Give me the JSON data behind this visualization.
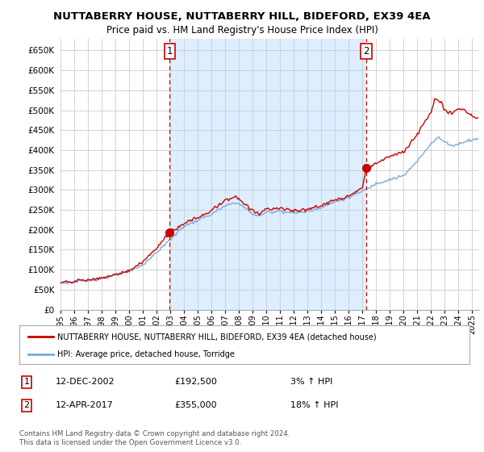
{
  "title": "NUTTABERRY HOUSE, NUTTABERRY HILL, BIDEFORD, EX39 4EA",
  "subtitle": "Price paid vs. HM Land Registry's House Price Index (HPI)",
  "ylabel_ticks": [
    "£0",
    "£50K",
    "£100K",
    "£150K",
    "£200K",
    "£250K",
    "£300K",
    "£350K",
    "£400K",
    "£450K",
    "£500K",
    "£550K",
    "£600K",
    "£650K"
  ],
  "ytick_values": [
    0,
    50000,
    100000,
    150000,
    200000,
    250000,
    300000,
    350000,
    400000,
    450000,
    500000,
    550000,
    600000,
    650000
  ],
  "ylim": [
    0,
    680000
  ],
  "xlim_start": 1995.0,
  "xlim_end": 2025.5,
  "purchase1_x": 2002.95,
  "purchase1_y": 192500,
  "purchase2_x": 2017.28,
  "purchase2_y": 355000,
  "marker_color": "#cc0000",
  "line_color_red": "#cc0000",
  "line_color_blue": "#7aaadd",
  "fill_color_blue": "#ddeeff",
  "vline_color": "#cc0000",
  "background_color": "#ffffff",
  "grid_color": "#cccccc",
  "legend_line1": "NUTTABERRY HOUSE, NUTTABERRY HILL, BIDEFORD, EX39 4EA (detached house)",
  "legend_line2": "HPI: Average price, detached house, Torridge",
  "annotation1_label": "1",
  "annotation1_date": "12-DEC-2002",
  "annotation1_price": "£192,500",
  "annotation1_hpi": "3% ↑ HPI",
  "annotation2_label": "2",
  "annotation2_date": "12-APR-2017",
  "annotation2_price": "£355,000",
  "annotation2_hpi": "18% ↑ HPI",
  "footnote": "Contains HM Land Registry data © Crown copyright and database right 2024.\nThis data is licensed under the Open Government Licence v3.0."
}
